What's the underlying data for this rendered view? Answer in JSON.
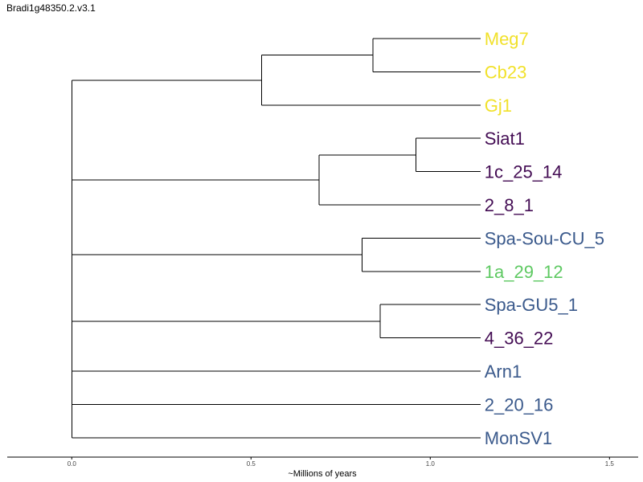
{
  "title": "Bradi1g48350.2.v3.1",
  "colors": {
    "yellow": "#f1e12b",
    "purple": "#440d54",
    "blue": "#3b5a8c",
    "green": "#5ec962"
  },
  "tree": {
    "axis_label": "~Millions of years",
    "ticks": [
      "0.0",
      "0.5",
      "1.0",
      "1.5"
    ],
    "tick_values": [
      0.0,
      0.5,
      1.0,
      1.5
    ],
    "xlim": [
      -0.18,
      1.58
    ],
    "tip_x": 1.14,
    "leaves": [
      {
        "label": "Meg7",
        "color": "yellow"
      },
      {
        "label": "Cb23",
        "color": "yellow"
      },
      {
        "label": "Gj1",
        "color": "yellow"
      },
      {
        "label": "Siat1",
        "color": "purple"
      },
      {
        "label": "1c_25_14",
        "color": "purple"
      },
      {
        "label": "2_8_1",
        "color": "purple"
      },
      {
        "label": "Spa-Sou-CU_5",
        "color": "blue"
      },
      {
        "label": "1a_29_12",
        "color": "green"
      },
      {
        "label": "Spa-GU5_1",
        "color": "blue"
      },
      {
        "label": "4_36_22",
        "color": "purple"
      },
      {
        "label": "Arn1",
        "color": "blue"
      },
      {
        "label": "2_20_16",
        "color": "blue"
      },
      {
        "label": "MonSV1",
        "color": "blue"
      }
    ],
    "nodes": [
      {
        "id": "n_meg_cb",
        "x": 0.84,
        "children": [
          "L0",
          "L1"
        ]
      },
      {
        "id": "n_yellow",
        "x": 0.53,
        "children": [
          "n_meg_cb",
          "L2"
        ]
      },
      {
        "id": "n_siat_1c",
        "x": 0.96,
        "children": [
          "L3",
          "L4"
        ]
      },
      {
        "id": "n_purple",
        "x": 0.69,
        "children": [
          "n_siat_1c",
          "L5"
        ]
      },
      {
        "id": "n_spa_1a",
        "x": 0.81,
        "children": [
          "L6",
          "L7"
        ]
      },
      {
        "id": "n_gu5_436",
        "x": 0.86,
        "children": [
          "L8",
          "L9"
        ]
      },
      {
        "id": "root",
        "x": 0.0,
        "children": [
          "n_yellow",
          "n_purple",
          "n_spa_1a",
          "n_gu5_436",
          "L10",
          "L11",
          "L12"
        ]
      }
    ]
  }
}
